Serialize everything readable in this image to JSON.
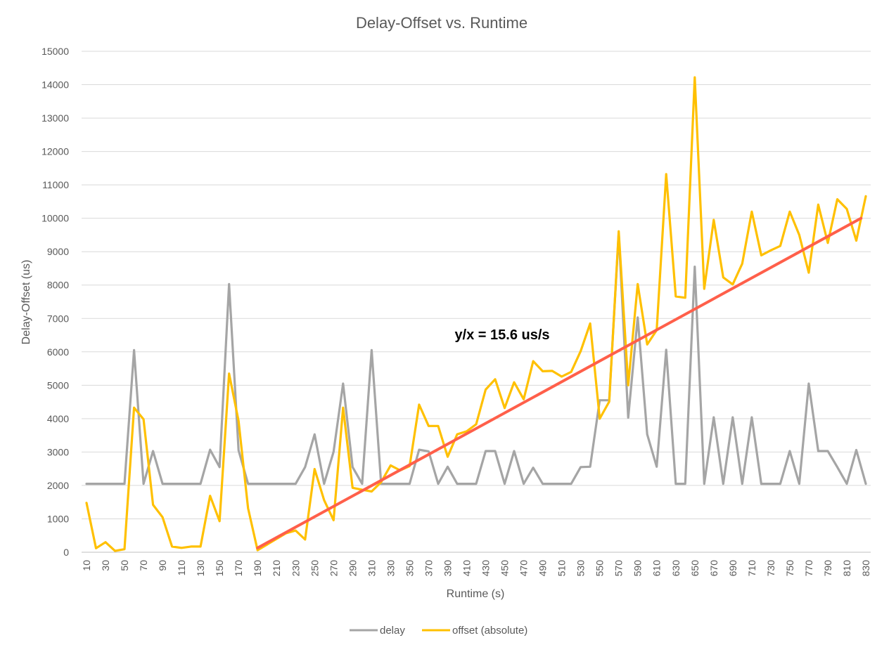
{
  "chart_data": {
    "type": "line",
    "title": "Delay-Offset vs. Runtime",
    "xlabel": "Runtime (s)",
    "ylabel": "Delay-Offset (us)",
    "ylim": [
      0,
      15000
    ],
    "yticks": [
      0,
      1000,
      2000,
      3000,
      4000,
      5000,
      6000,
      7000,
      8000,
      9000,
      10000,
      11000,
      12000,
      13000,
      14000,
      15000
    ],
    "x": [
      10,
      20,
      30,
      40,
      50,
      60,
      70,
      80,
      90,
      100,
      110,
      120,
      130,
      140,
      150,
      160,
      170,
      180,
      190,
      200,
      210,
      220,
      230,
      240,
      250,
      260,
      270,
      280,
      290,
      300,
      310,
      320,
      330,
      340,
      350,
      360,
      370,
      380,
      390,
      400,
      410,
      420,
      430,
      440,
      450,
      460,
      470,
      480,
      490,
      500,
      510,
      520,
      530,
      540,
      550,
      560,
      570,
      580,
      590,
      600,
      610,
      620,
      630,
      640,
      650,
      660,
      670,
      680,
      690,
      700,
      710,
      720,
      730,
      740,
      750,
      760,
      770,
      780,
      790,
      800,
      810,
      820,
      830
    ],
    "xtick_labels": [
      "10",
      "30",
      "50",
      "70",
      "90",
      "110",
      "130",
      "150",
      "170",
      "190",
      "210",
      "230",
      "250",
      "270",
      "290",
      "310",
      "330",
      "350",
      "370",
      "390",
      "410",
      "430",
      "450",
      "470",
      "490",
      "510",
      "530",
      "550",
      "570",
      "590",
      "610",
      "630",
      "650",
      "670",
      "690",
      "710",
      "730",
      "750",
      "770",
      "790",
      "810",
      "830"
    ],
    "series": [
      {
        "name": "delay",
        "color": "#a5a5a5",
        "values": [
          2050,
          2050,
          2050,
          2050,
          2050,
          6050,
          2050,
          3030,
          2050,
          2050,
          2050,
          2050,
          2050,
          3070,
          2550,
          8030,
          3050,
          2050,
          2050,
          2050,
          2050,
          2050,
          2050,
          2550,
          3530,
          2050,
          3010,
          5050,
          2550,
          2050,
          6050,
          2050,
          2050,
          2050,
          2050,
          3070,
          3020,
          2050,
          2560,
          2050,
          2050,
          2050,
          3030,
          3030,
          2050,
          3030,
          2050,
          2530,
          2050,
          2050,
          2050,
          2050,
          2550,
          2560,
          4550,
          4550,
          9550,
          4030,
          7030,
          3530,
          2560,
          6060,
          2050,
          2050,
          8550,
          2050,
          4040,
          2050,
          4040,
          2050,
          4040,
          2050,
          2050,
          2050,
          3030,
          2050,
          5050,
          3030,
          3030,
          2550,
          2050,
          3060,
          2050
        ]
      },
      {
        "name": "offset (absolute)",
        "color": "#ffc000",
        "values": [
          1480,
          120,
          300,
          40,
          90,
          4330,
          3980,
          1420,
          1050,
          170,
          130,
          170,
          170,
          1690,
          930,
          5350,
          3930,
          1320,
          60,
          230,
          400,
          570,
          650,
          380,
          2490,
          1560,
          960,
          4330,
          1930,
          1870,
          1820,
          2100,
          2600,
          2450,
          2580,
          4420,
          3780,
          3780,
          2860,
          3530,
          3620,
          3830,
          4870,
          5180,
          4320,
          5090,
          4580,
          5720,
          5420,
          5430,
          5260,
          5400,
          6020,
          6850,
          4000,
          4510,
          9610,
          5000,
          8030,
          6220,
          6650,
          11320,
          7660,
          7620,
          14220,
          7890,
          9950,
          8230,
          8020,
          8640,
          10200,
          8890,
          9040,
          9170,
          10200,
          9500,
          8370,
          10410,
          9260,
          10570,
          10280,
          9330,
          10660
        ]
      }
    ],
    "trendline": {
      "color": "#ff5f4a",
      "x_start": 190,
      "x_end": 825,
      "y_start": 130,
      "y_end": 10000
    },
    "annotation": "y/x = 15.6 us/s",
    "legend": [
      "delay",
      "offset (absolute)"
    ],
    "legend_placement": "bottom",
    "grid": true
  }
}
